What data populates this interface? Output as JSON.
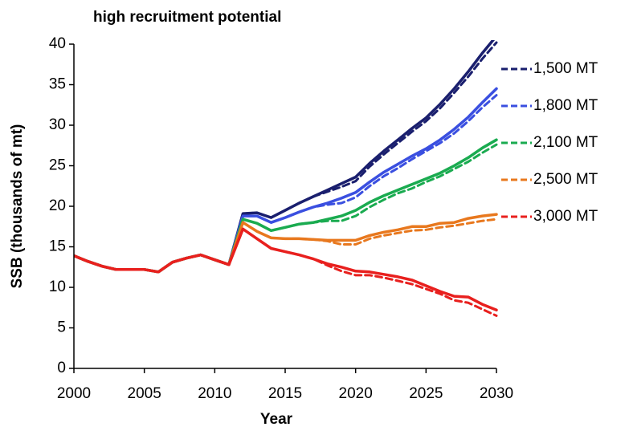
{
  "chart_data": {
    "type": "line",
    "title": "high recruitment potential",
    "x_label": "Year",
    "y_label": "SSB (thousands of mt)",
    "x": [
      2000,
      2001,
      2002,
      2003,
      2004,
      2005,
      2006,
      2007,
      2008,
      2009,
      2010,
      2011,
      2012,
      2013,
      2014,
      2015,
      2016,
      2017,
      2018,
      2019,
      2020,
      2021,
      2022,
      2023,
      2024,
      2025,
      2026,
      2027,
      2028,
      2029,
      2030
    ],
    "xlim": [
      2000,
      2030
    ],
    "xticks": [
      2000,
      2005,
      2010,
      2015,
      2020,
      2025,
      2030
    ],
    "ylim": [
      0,
      40
    ],
    "yticks": [
      0,
      5,
      10,
      15,
      20,
      25,
      30,
      35,
      40
    ],
    "grid": false,
    "legend": "right",
    "series": [
      {
        "color": "#1a1f6e",
        "style": "solid",
        "values": [
          13.9,
          13.2,
          12.6,
          12.2,
          12.2,
          12.2,
          11.9,
          13.1,
          13.6,
          14.0,
          13.4,
          12.8,
          19.1,
          19.2,
          18.6,
          19.5,
          20.4,
          21.2,
          22.0,
          22.8,
          23.6,
          25.3,
          26.8,
          28.2,
          29.6,
          30.9,
          32.6,
          34.5,
          36.6,
          38.9,
          41.0
        ]
      },
      {
        "name": "1,500 MT",
        "color": "#1a1f6e",
        "style": "dashed",
        "values": [
          13.9,
          13.2,
          12.6,
          12.2,
          12.2,
          12.2,
          11.9,
          13.1,
          13.6,
          14.0,
          13.4,
          12.8,
          19.1,
          19.2,
          18.6,
          19.5,
          20.4,
          21.2,
          21.8,
          22.4,
          23.1,
          24.9,
          26.4,
          27.8,
          29.2,
          30.5,
          32.1,
          34.0,
          36.0,
          38.2,
          40.2
        ]
      },
      {
        "color": "#3a4fe0",
        "style": "solid",
        "values": [
          13.9,
          13.2,
          12.6,
          12.2,
          12.2,
          12.2,
          11.9,
          13.1,
          13.6,
          14.0,
          13.4,
          12.8,
          18.8,
          18.8,
          18.0,
          18.6,
          19.3,
          19.9,
          20.4,
          21.0,
          21.7,
          23.0,
          24.2,
          25.2,
          26.2,
          27.1,
          28.2,
          29.5,
          31.0,
          32.8,
          34.5
        ]
      },
      {
        "name": "1,800 MT",
        "color": "#3a4fe0",
        "style": "dashed",
        "values": [
          13.9,
          13.2,
          12.6,
          12.2,
          12.2,
          12.2,
          11.9,
          13.1,
          13.6,
          14.0,
          13.4,
          12.8,
          18.8,
          18.8,
          18.0,
          18.6,
          19.3,
          19.9,
          20.2,
          20.4,
          21.1,
          22.5,
          23.7,
          24.7,
          25.8,
          26.8,
          27.8,
          29.0,
          30.5,
          32.2,
          33.7
        ]
      },
      {
        "color": "#1aab50",
        "style": "solid",
        "values": [
          13.9,
          13.2,
          12.6,
          12.2,
          12.2,
          12.2,
          11.9,
          13.1,
          13.6,
          14.0,
          13.4,
          12.8,
          18.4,
          17.9,
          17.0,
          17.4,
          17.8,
          18.0,
          18.4,
          18.8,
          19.5,
          20.5,
          21.3,
          22.0,
          22.7,
          23.4,
          24.1,
          25.0,
          26.0,
          27.2,
          28.2
        ]
      },
      {
        "name": "2,100 MT",
        "color": "#1aab50",
        "style": "dashed",
        "values": [
          13.9,
          13.2,
          12.6,
          12.2,
          12.2,
          12.2,
          11.9,
          13.1,
          13.6,
          14.0,
          13.4,
          12.8,
          18.4,
          17.9,
          17.0,
          17.4,
          17.8,
          18.0,
          18.2,
          18.2,
          18.8,
          19.9,
          20.8,
          21.6,
          22.2,
          23.0,
          23.7,
          24.6,
          25.5,
          26.6,
          27.6
        ]
      },
      {
        "color": "#e8781e",
        "style": "solid",
        "values": [
          13.9,
          13.2,
          12.6,
          12.2,
          12.2,
          12.2,
          11.9,
          13.1,
          13.6,
          14.0,
          13.4,
          12.8,
          18.0,
          16.9,
          16.1,
          16.0,
          16.0,
          15.9,
          15.8,
          15.8,
          15.8,
          16.4,
          16.8,
          17.1,
          17.5,
          17.5,
          17.9,
          18.0,
          18.5,
          18.8,
          19.0
        ]
      },
      {
        "name": "2,500 MT",
        "color": "#e8781e",
        "style": "dashed",
        "values": [
          13.9,
          13.2,
          12.6,
          12.2,
          12.2,
          12.2,
          11.9,
          13.1,
          13.6,
          14.0,
          13.4,
          12.8,
          18.0,
          16.9,
          16.1,
          16.0,
          16.0,
          15.9,
          15.7,
          15.3,
          15.3,
          16.0,
          16.4,
          16.7,
          17.0,
          17.1,
          17.4,
          17.6,
          17.9,
          18.2,
          18.4
        ]
      },
      {
        "color": "#e8201e",
        "style": "solid",
        "values": [
          13.9,
          13.2,
          12.6,
          12.2,
          12.2,
          12.2,
          11.9,
          13.1,
          13.6,
          14.0,
          13.4,
          12.8,
          17.2,
          16.0,
          14.8,
          14.4,
          14.0,
          13.5,
          12.9,
          12.5,
          12.0,
          11.9,
          11.6,
          11.3,
          10.9,
          10.2,
          9.5,
          8.9,
          8.8,
          7.9,
          7.2
        ]
      },
      {
        "name": "3,000 MT",
        "color": "#e8201e",
        "style": "dashed",
        "values": [
          13.9,
          13.2,
          12.6,
          12.2,
          12.2,
          12.2,
          11.9,
          13.1,
          13.6,
          14.0,
          13.4,
          12.8,
          17.2,
          16.0,
          14.8,
          14.4,
          14.0,
          13.5,
          12.7,
          12.0,
          11.5,
          11.5,
          11.2,
          10.8,
          10.4,
          9.8,
          9.2,
          8.4,
          8.1,
          7.3,
          6.5
        ]
      }
    ]
  }
}
